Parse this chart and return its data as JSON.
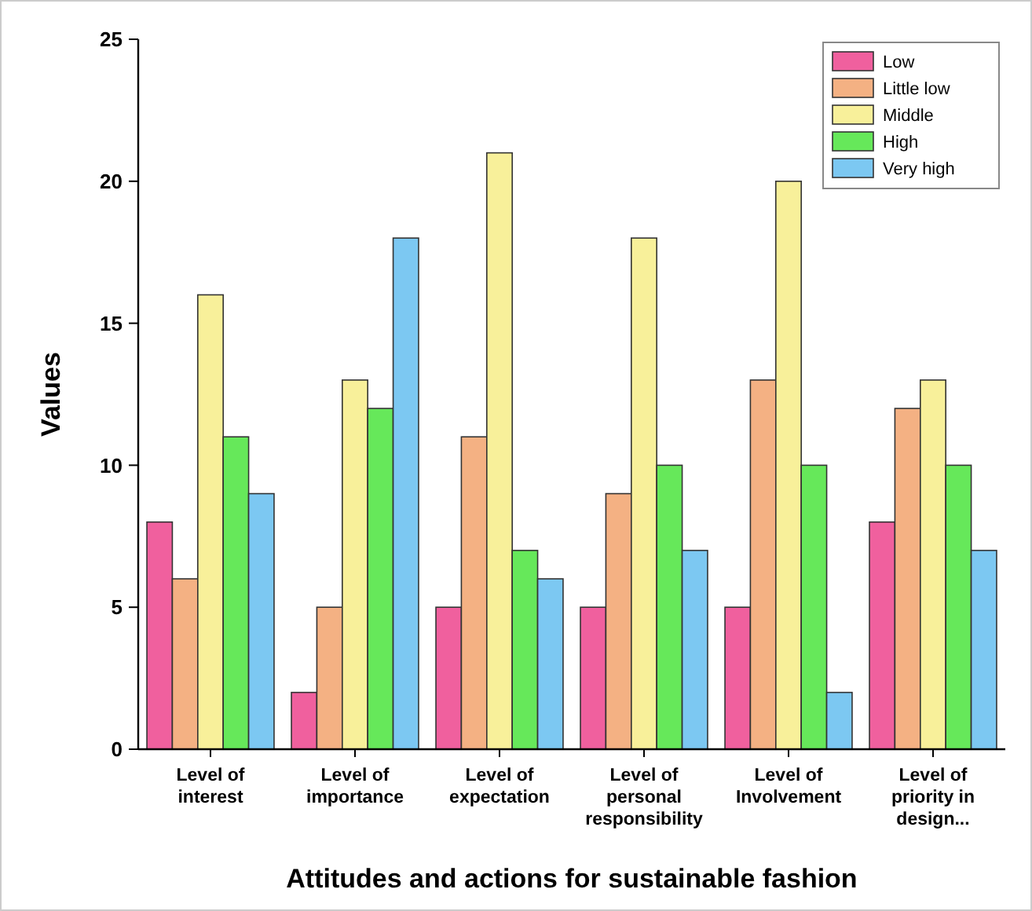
{
  "chart_data": {
    "type": "bar",
    "xlabel": "Attitudes and actions for sustainable fashion",
    "ylabel": "Values",
    "categories": [
      "Level of interest",
      "Level of importance",
      "Level of expectation",
      "Level of personal responsibility",
      "Level of Involvement",
      "Level of priority in design..."
    ],
    "series": [
      {
        "name": "Low",
        "color": "#f0609e",
        "values": [
          8,
          2,
          5,
          5,
          5,
          8
        ]
      },
      {
        "name": "Little low",
        "color": "#f4b183",
        "values": [
          6,
          5,
          11,
          9,
          13,
          12
        ]
      },
      {
        "name": "Middle",
        "color": "#f8f09a",
        "values": [
          16,
          13,
          21,
          18,
          20,
          13
        ]
      },
      {
        "name": "High",
        "color": "#66e85a",
        "values": [
          11,
          12,
          7,
          10,
          10,
          10
        ]
      },
      {
        "name": "Very high",
        "color": "#7cc8f2",
        "values": [
          9,
          18,
          6,
          7,
          2,
          7
        ]
      }
    ],
    "ylim": [
      0,
      25
    ],
    "yticks": [
      0,
      5,
      10,
      15,
      20,
      25
    ],
    "grid": false,
    "legend": "top right"
  }
}
